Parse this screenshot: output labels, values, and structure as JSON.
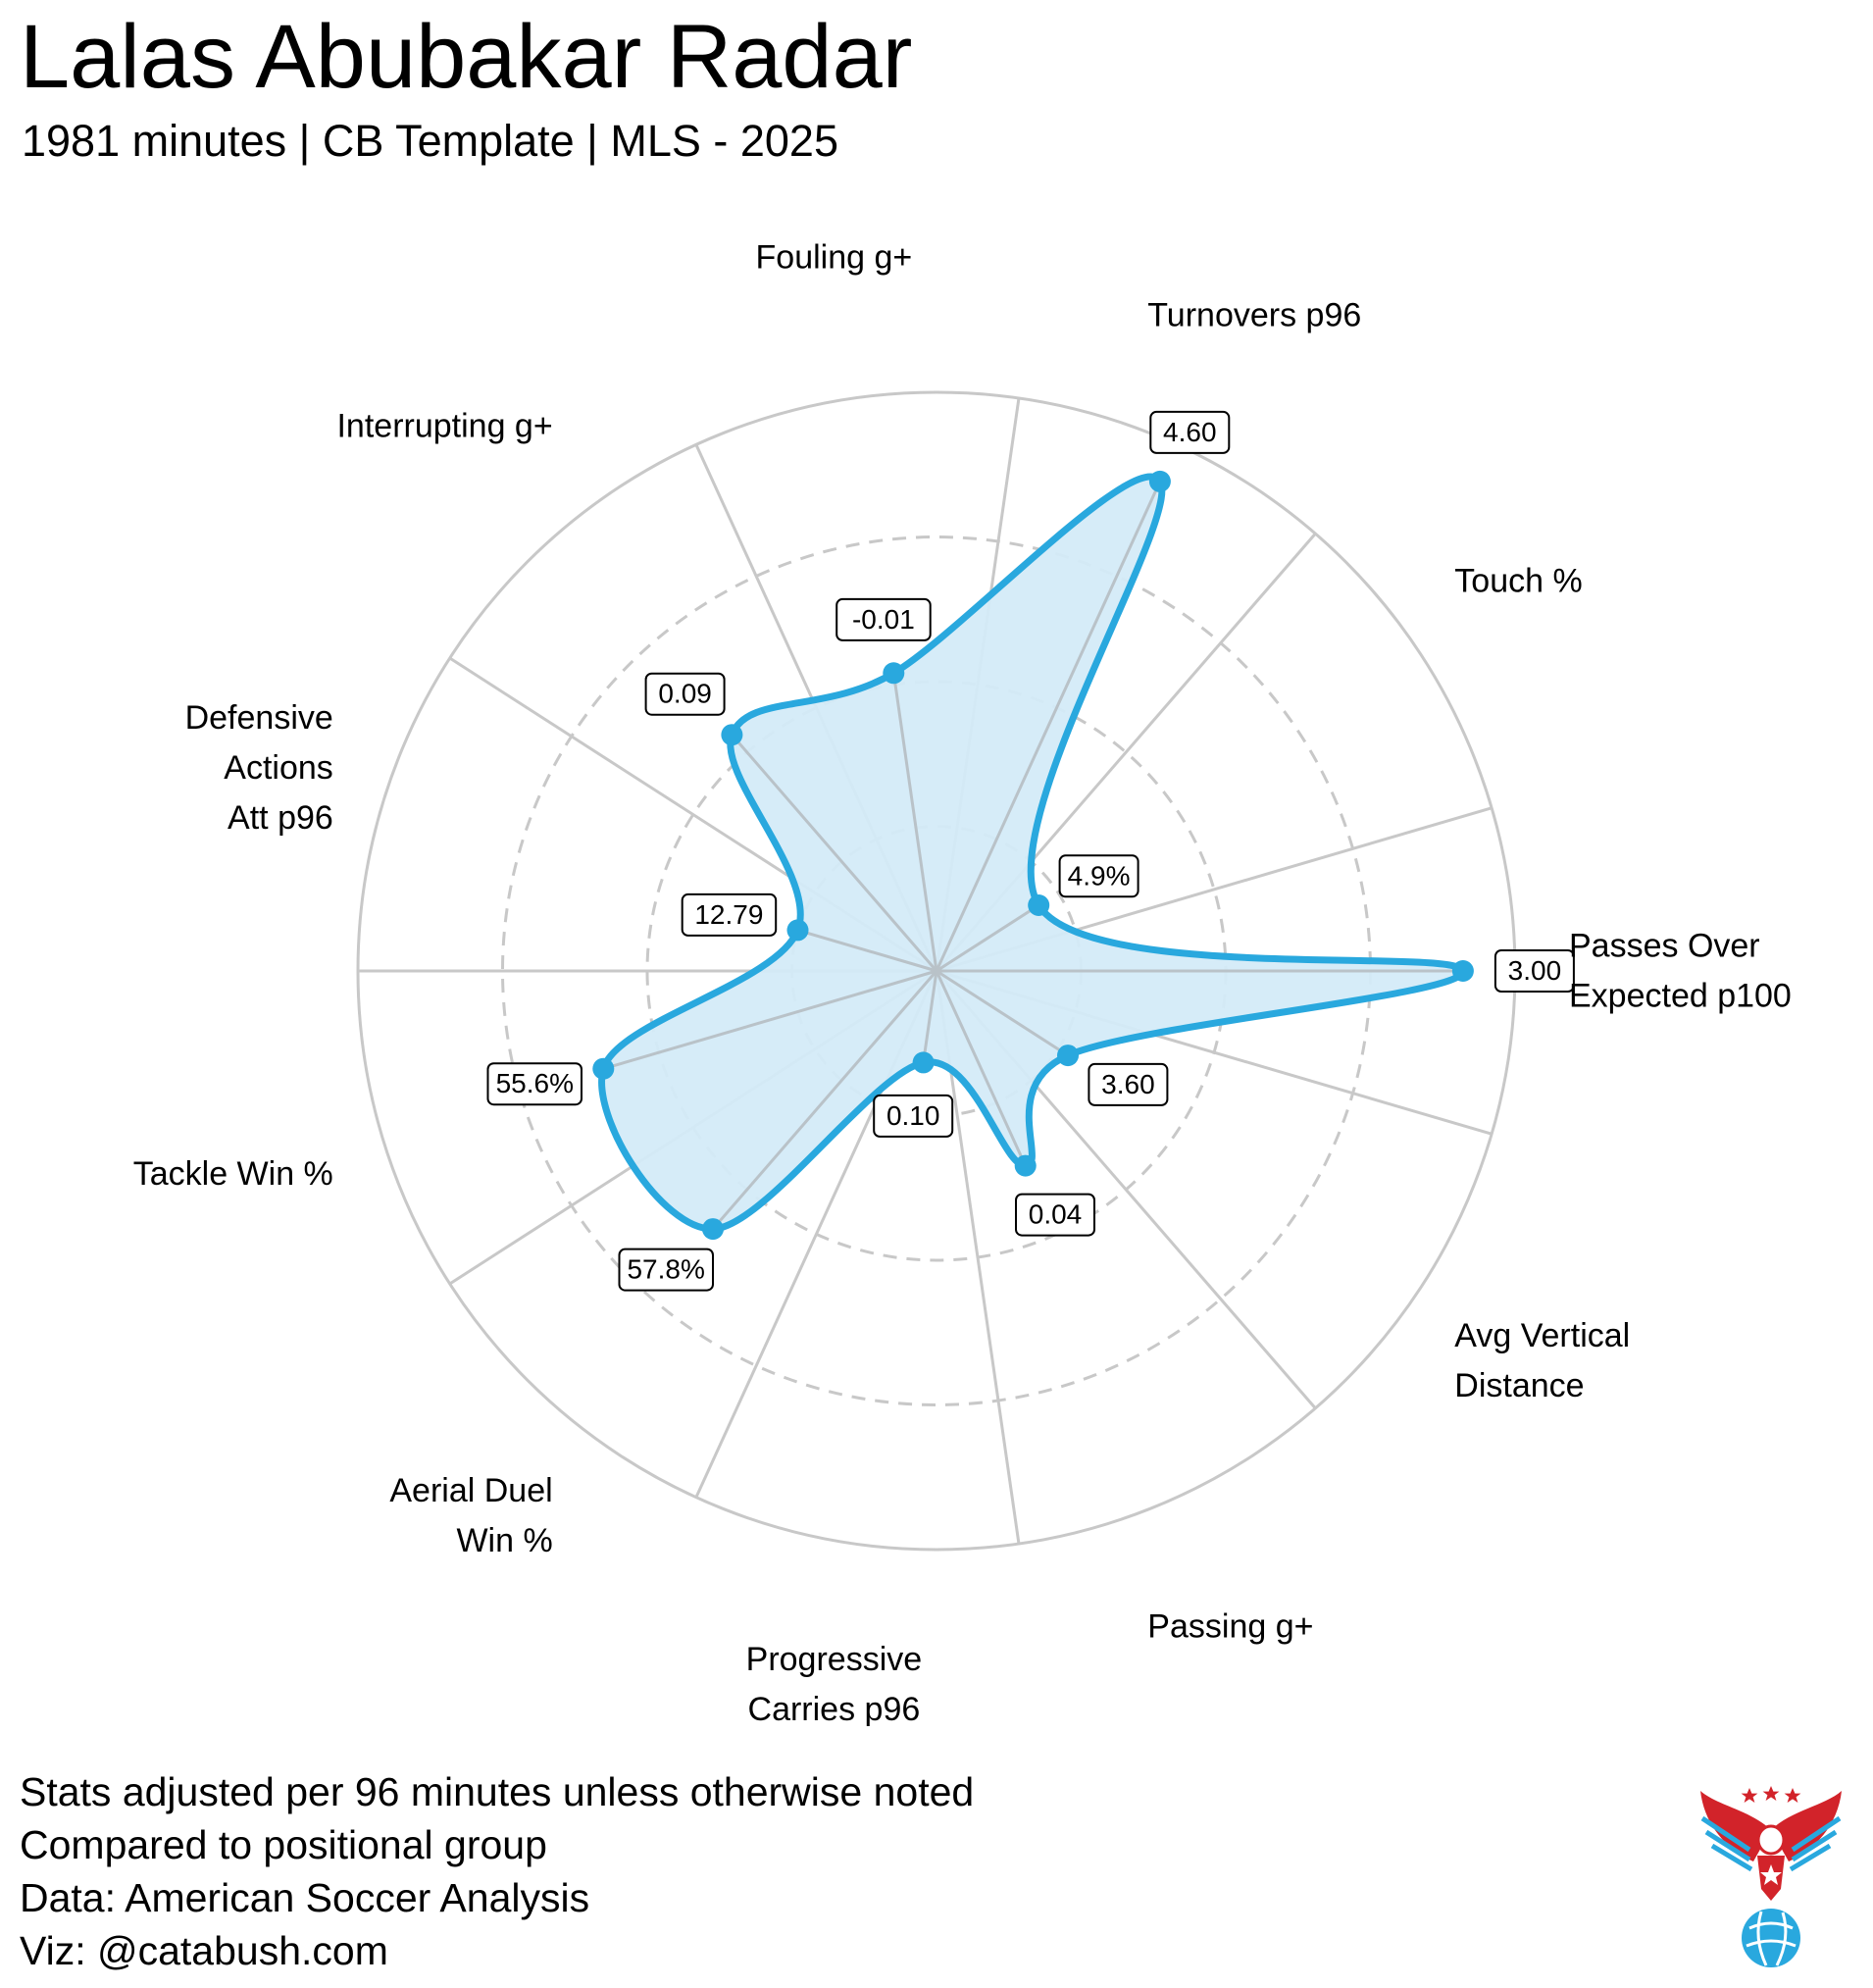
{
  "header": {
    "title": "Lalas Abubakar Radar",
    "subtitle": "1981 minutes | CB Template | MLS - 2025"
  },
  "colors": {
    "accent": "#29a8de",
    "fill": "#d4ebf8",
    "grid": "#c8c8c8",
    "logo_red": "#d2232a",
    "logo_blue": "#29a8de"
  },
  "chart_data": {
    "type": "radar",
    "title": "Lalas Abubakar Radar",
    "subtitle": "1981 minutes | CB Template | MLS - 2025",
    "radial_range": [
      0,
      100
    ],
    "radial_unit": "percentile",
    "gridlines": [
      25,
      50,
      75
    ],
    "axes": [
      {
        "label": [
          "Passes Over",
          "Expected p100"
        ],
        "value_label": "3.00",
        "percentile": 91
      },
      {
        "label": [
          "Touch %"
        ],
        "value_label": "4.9%",
        "percentile": 21
      },
      {
        "label": [
          "Turnovers p96"
        ],
        "value_label": "4.60",
        "percentile": 93
      },
      {
        "label": [
          "Fouling g+"
        ],
        "value_label": "-0.01",
        "percentile": 52
      },
      {
        "label": [
          "Interrupting g+"
        ],
        "value_label": "0.09",
        "percentile": 54
      },
      {
        "label": [
          "Defensive",
          "Actions",
          "Att p96"
        ],
        "value_label": "12.79",
        "percentile": 25
      },
      {
        "label": [
          "Tackle Win %"
        ],
        "value_label": "55.6%",
        "percentile": 60
      },
      {
        "label": [
          "Aerial Duel",
          "Win %"
        ],
        "value_label": "57.8%",
        "percentile": 59
      },
      {
        "label": [
          "Progressive",
          "Carries p96"
        ],
        "value_label": "0.10",
        "percentile": 16
      },
      {
        "label": [
          "Passing g+"
        ],
        "value_label": "0.04",
        "percentile": 37
      },
      {
        "label": [
          "Avg Vertical",
          "Distance"
        ],
        "value_label": "3.60",
        "percentile": 27
      }
    ]
  },
  "footer": {
    "lines": [
      "Stats adjusted per 96 minutes unless otherwise noted",
      "Compared to positional group",
      "Data: American Soccer Analysis",
      "Viz: @catabush.com"
    ]
  },
  "logo": {
    "icon": "eagle-soccer-ball-icon"
  }
}
